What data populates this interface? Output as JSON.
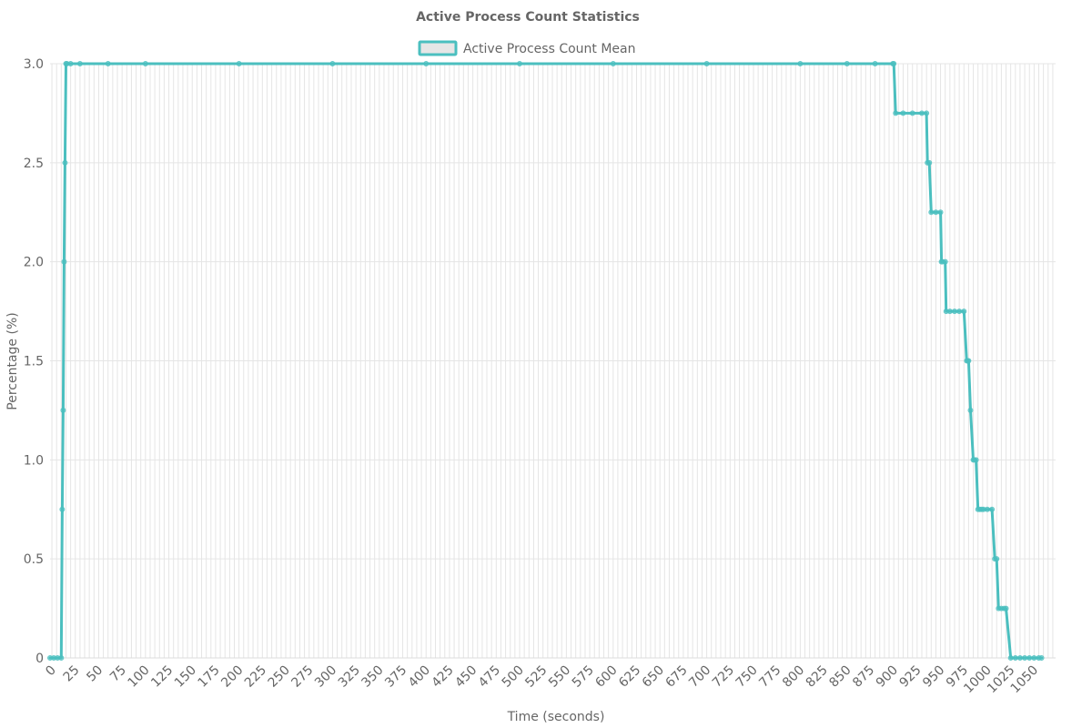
{
  "chart_data": {
    "type": "line",
    "title": "Active Process Count Statistics",
    "xlabel": "Time (seconds)",
    "ylabel": "Percentage (%)",
    "xlim": [
      -2,
      1073
    ],
    "ylim": [
      0,
      3.0
    ],
    "x_ticks": [
      0,
      25,
      50,
      75,
      100,
      125,
      150,
      175,
      200,
      225,
      250,
      275,
      300,
      325,
      350,
      375,
      400,
      425,
      450,
      475,
      500,
      525,
      550,
      575,
      600,
      625,
      650,
      675,
      700,
      725,
      750,
      775,
      800,
      825,
      850,
      875,
      900,
      925,
      950,
      975,
      1000,
      1025,
      1050
    ],
    "y_ticks": [
      0,
      0.5,
      1.0,
      1.5,
      2.0,
      2.5,
      3.0
    ],
    "y_tick_labels": [
      "0",
      "0.5",
      "1.0",
      "1.5",
      "2.0",
      "2.5",
      "3.0"
    ],
    "grid": true,
    "legend_position": "top-center",
    "series": [
      {
        "name": "Active Process Count Mean",
        "color": "#4bbfbf",
        "fill_color": "#e6e6e6",
        "x": [
          -2,
          2,
          6,
          10,
          11,
          12,
          13,
          14,
          15,
          16,
          20,
          30,
          60,
          100,
          200,
          300,
          400,
          500,
          600,
          700,
          800,
          850,
          880,
          899,
          900,
          902,
          910,
          920,
          930,
          935,
          936,
          938,
          940,
          945,
          950,
          951,
          952,
          955,
          956,
          960,
          965,
          970,
          975,
          978,
          979,
          980,
          982,
          985,
          986,
          988,
          990,
          992,
          994,
          996,
          1000,
          1005,
          1008,
          1010,
          1012,
          1015,
          1018,
          1020,
          1025,
          1030,
          1035,
          1040,
          1045,
          1050,
          1055,
          1058
        ],
        "values": [
          0,
          0,
          0,
          0,
          0.75,
          1.25,
          2.0,
          2.5,
          3.0,
          3.0,
          3.0,
          3.0,
          3.0,
          3.0,
          3.0,
          3.0,
          3.0,
          3.0,
          3.0,
          3.0,
          3.0,
          3.0,
          3.0,
          3.0,
          3.0,
          2.75,
          2.75,
          2.75,
          2.75,
          2.75,
          2.5,
          2.5,
          2.25,
          2.25,
          2.25,
          2.0,
          2.0,
          2.0,
          1.75,
          1.75,
          1.75,
          1.75,
          1.75,
          1.5,
          1.5,
          1.5,
          1.25,
          1.0,
          1.0,
          1.0,
          0.75,
          0.75,
          0.75,
          0.75,
          0.75,
          0.75,
          0.5,
          0.5,
          0.25,
          0.25,
          0.25,
          0.25,
          0,
          0,
          0,
          0,
          0,
          0,
          0,
          0
        ]
      }
    ]
  }
}
